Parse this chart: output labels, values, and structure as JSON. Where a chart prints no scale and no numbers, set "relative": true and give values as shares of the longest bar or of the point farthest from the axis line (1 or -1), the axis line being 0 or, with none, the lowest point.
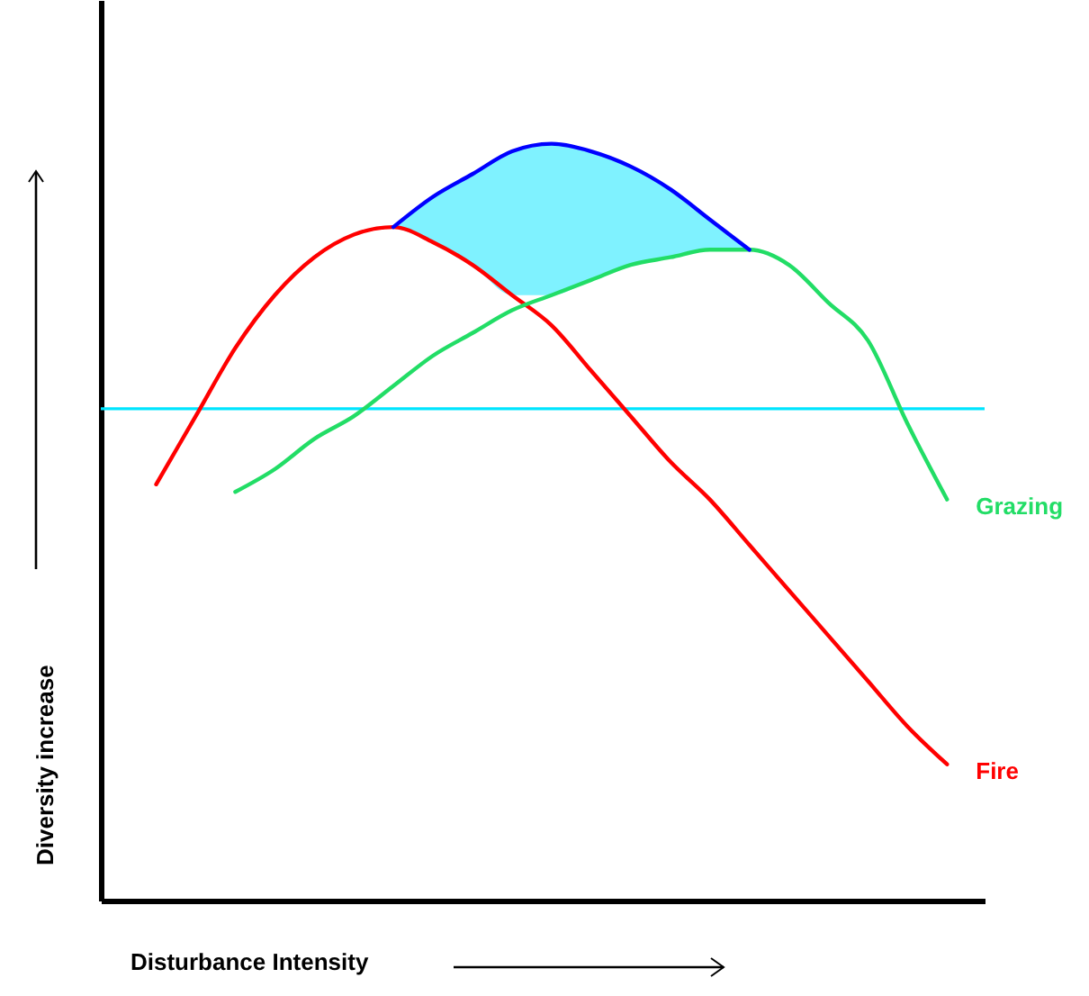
{
  "chart_data": {
    "type": "line",
    "relative": true,
    "xlabel": "Disturbance Intensity",
    "ylabel": "Diversity increase",
    "grid": false,
    "line_style": "solid",
    "categories": [
      null,
      null,
      null,
      null,
      null,
      null,
      null,
      null,
      null,
      null,
      null,
      null,
      null,
      null,
      null,
      null,
      null,
      null,
      null,
      null,
      null
    ],
    "series": [
      {
        "name": "Fire",
        "color": "#ff0000",
        "values": [
          0.55,
          0.64,
          0.73,
          0.8,
          0.85,
          0.88,
          0.89,
          0.87,
          0.84,
          0.8,
          0.76,
          0.7,
          0.64,
          0.58,
          0.53,
          0.47,
          0.41,
          0.35,
          0.29,
          0.23,
          0.18
        ]
      },
      {
        "name": "Grazing",
        "color": "#22dd66",
        "values": [
          null,
          null,
          0.54,
          0.57,
          0.61,
          0.64,
          0.68,
          0.72,
          0.75,
          0.78,
          0.8,
          0.82,
          0.84,
          0.85,
          0.86,
          0.86,
          0.84,
          0.79,
          0.74,
          0.63,
          0.53
        ]
      },
      {
        "color": "#0000ff",
        "values": [
          null,
          null,
          null,
          null,
          null,
          null,
          0.89,
          0.93,
          0.96,
          0.99,
          1,
          0.99,
          0.97,
          0.94,
          0.9,
          0.86,
          null,
          null,
          null,
          null,
          null
        ],
        "lower": [
          null,
          null,
          null,
          null,
          null,
          null,
          0.89,
          0.87,
          0.84,
          0.8,
          0.8,
          0.82,
          0.84,
          0.85,
          0.86,
          0.86,
          null,
          null,
          null,
          null,
          null
        ],
        "upper": [
          null,
          null,
          null,
          null,
          null,
          null,
          0.89,
          0.93,
          0.96,
          0.99,
          1,
          0.99,
          0.97,
          0.94,
          0.9,
          0.86,
          null,
          null,
          null,
          null,
          null
        ]
      }
    ],
    "ref_lines": [
      {
        "axis": "y",
        "value": 0.65,
        "color": "#00e5ff"
      }
    ]
  }
}
